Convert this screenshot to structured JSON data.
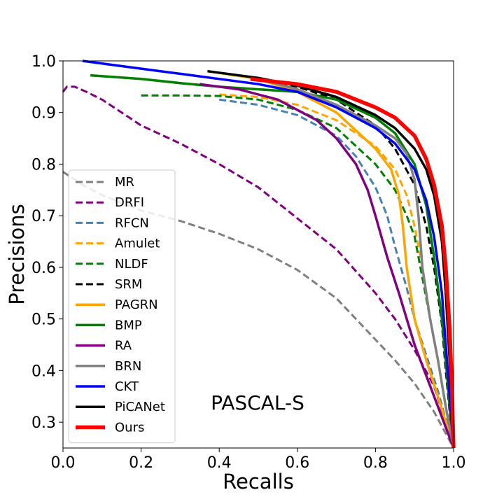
{
  "chart_data": {
    "type": "line",
    "title": "",
    "annotation": "PASCAL-S",
    "xlabel": "Recalls",
    "ylabel": "Precisions",
    "xlim": [
      0.0,
      1.0
    ],
    "ylim": [
      0.25,
      1.0
    ],
    "xticks": [
      "0.0",
      "0.2",
      "0.4",
      "0.6",
      "0.8",
      "1.0"
    ],
    "yticks": [
      "0.3",
      "0.4",
      "0.5",
      "0.6",
      "0.7",
      "0.8",
      "0.9",
      "1.0"
    ],
    "grid": false,
    "legend_position": "lower-left",
    "series": [
      {
        "name": "MR",
        "color": "#808080",
        "dash": true,
        "width": 3,
        "points": [
          [
            0.0,
            0.785
          ],
          [
            0.05,
            0.76
          ],
          [
            0.1,
            0.74
          ],
          [
            0.2,
            0.71
          ],
          [
            0.3,
            0.69
          ],
          [
            0.4,
            0.665
          ],
          [
            0.5,
            0.635
          ],
          [
            0.6,
            0.595
          ],
          [
            0.7,
            0.54
          ],
          [
            0.8,
            0.46
          ],
          [
            0.85,
            0.42
          ],
          [
            0.9,
            0.375
          ],
          [
            0.95,
            0.32
          ],
          [
            1.0,
            0.25
          ]
        ]
      },
      {
        "name": "DRFI",
        "color": "#800080",
        "dash": true,
        "width": 3,
        "points": [
          [
            0.0,
            0.94
          ],
          [
            0.01,
            0.95
          ],
          [
            0.03,
            0.95
          ],
          [
            0.06,
            0.94
          ],
          [
            0.1,
            0.925
          ],
          [
            0.15,
            0.9
          ],
          [
            0.2,
            0.875
          ],
          [
            0.3,
            0.84
          ],
          [
            0.4,
            0.8
          ],
          [
            0.5,
            0.755
          ],
          [
            0.6,
            0.695
          ],
          [
            0.7,
            0.635
          ],
          [
            0.8,
            0.55
          ],
          [
            0.85,
            0.5
          ],
          [
            0.9,
            0.44
          ],
          [
            0.95,
            0.37
          ],
          [
            1.0,
            0.25
          ]
        ]
      },
      {
        "name": "RFCN",
        "color": "#4682B4",
        "dash": true,
        "width": 3,
        "points": [
          [
            0.4,
            0.925
          ],
          [
            0.5,
            0.915
          ],
          [
            0.6,
            0.895
          ],
          [
            0.7,
            0.855
          ],
          [
            0.75,
            0.815
          ],
          [
            0.8,
            0.755
          ],
          [
            0.83,
            0.7
          ],
          [
            0.85,
            0.64
          ],
          [
            0.88,
            0.56
          ],
          [
            0.9,
            0.5
          ],
          [
            0.93,
            0.43
          ],
          [
            0.96,
            0.36
          ],
          [
            1.0,
            0.25
          ]
        ]
      },
      {
        "name": "Amulet",
        "color": "#FFA500",
        "dash": true,
        "width": 3,
        "points": [
          [
            0.4,
            0.935
          ],
          [
            0.5,
            0.93
          ],
          [
            0.6,
            0.915
          ],
          [
            0.7,
            0.885
          ],
          [
            0.8,
            0.835
          ],
          [
            0.85,
            0.79
          ],
          [
            0.88,
            0.74
          ],
          [
            0.9,
            0.68
          ],
          [
            0.92,
            0.6
          ],
          [
            0.94,
            0.5
          ],
          [
            0.96,
            0.42
          ],
          [
            0.98,
            0.33
          ],
          [
            1.0,
            0.25
          ]
        ]
      },
      {
        "name": "NLDF",
        "color": "#008000",
        "dash": true,
        "width": 3,
        "points": [
          [
            0.2,
            0.933
          ],
          [
            0.3,
            0.933
          ],
          [
            0.4,
            0.932
          ],
          [
            0.5,
            0.925
          ],
          [
            0.6,
            0.905
          ],
          [
            0.7,
            0.87
          ],
          [
            0.8,
            0.8
          ],
          [
            0.85,
            0.75
          ],
          [
            0.88,
            0.7
          ],
          [
            0.9,
            0.66
          ],
          [
            0.92,
            0.58
          ],
          [
            0.94,
            0.5
          ],
          [
            0.96,
            0.42
          ],
          [
            0.98,
            0.33
          ],
          [
            1.0,
            0.25
          ]
        ]
      },
      {
        "name": "SRM",
        "color": "#000000",
        "dash": true,
        "width": 3,
        "points": [
          [
            0.37,
            0.98
          ],
          [
            0.5,
            0.965
          ],
          [
            0.6,
            0.95
          ],
          [
            0.7,
            0.925
          ],
          [
            0.8,
            0.875
          ],
          [
            0.85,
            0.83
          ],
          [
            0.9,
            0.76
          ],
          [
            0.93,
            0.68
          ],
          [
            0.95,
            0.6
          ],
          [
            0.97,
            0.49
          ],
          [
            0.98,
            0.4
          ],
          [
            0.99,
            0.32
          ],
          [
            1.0,
            0.25
          ]
        ]
      },
      {
        "name": "PAGRN",
        "color": "#FFA500",
        "dash": false,
        "width": 3.5,
        "points": [
          [
            0.37,
            0.98
          ],
          [
            0.5,
            0.965
          ],
          [
            0.6,
            0.94
          ],
          [
            0.7,
            0.9
          ],
          [
            0.8,
            0.83
          ],
          [
            0.84,
            0.79
          ],
          [
            0.86,
            0.74
          ],
          [
            0.87,
            0.68
          ],
          [
            0.88,
            0.6
          ],
          [
            0.9,
            0.5
          ],
          [
            0.93,
            0.42
          ],
          [
            0.96,
            0.35
          ],
          [
            1.0,
            0.25
          ]
        ]
      },
      {
        "name": "BMP",
        "color": "#008000",
        "dash": false,
        "width": 3.5,
        "points": [
          [
            0.07,
            0.972
          ],
          [
            0.2,
            0.965
          ],
          [
            0.3,
            0.957
          ],
          [
            0.4,
            0.95
          ],
          [
            0.5,
            0.945
          ],
          [
            0.6,
            0.94
          ],
          [
            0.7,
            0.925
          ],
          [
            0.8,
            0.89
          ],
          [
            0.85,
            0.86
          ],
          [
            0.9,
            0.8
          ],
          [
            0.93,
            0.72
          ],
          [
            0.95,
            0.62
          ],
          [
            0.97,
            0.5
          ],
          [
            0.98,
            0.42
          ],
          [
            0.99,
            0.33
          ],
          [
            1.0,
            0.25
          ]
        ]
      },
      {
        "name": "RA",
        "color": "#800080",
        "dash": false,
        "width": 3.5,
        "points": [
          [
            0.35,
            0.955
          ],
          [
            0.45,
            0.945
          ],
          [
            0.55,
            0.925
          ],
          [
            0.65,
            0.885
          ],
          [
            0.7,
            0.85
          ],
          [
            0.75,
            0.8
          ],
          [
            0.78,
            0.75
          ],
          [
            0.8,
            0.7
          ],
          [
            0.83,
            0.62
          ],
          [
            0.86,
            0.55
          ],
          [
            0.9,
            0.45
          ],
          [
            0.95,
            0.35
          ],
          [
            1.0,
            0.25
          ]
        ]
      },
      {
        "name": "BRN",
        "color": "#808080",
        "dash": false,
        "width": 3.5,
        "points": [
          [
            0.5,
            0.965
          ],
          [
            0.6,
            0.945
          ],
          [
            0.7,
            0.915
          ],
          [
            0.8,
            0.875
          ],
          [
            0.85,
            0.85
          ],
          [
            0.88,
            0.82
          ],
          [
            0.9,
            0.77
          ],
          [
            0.91,
            0.7
          ],
          [
            0.92,
            0.6
          ],
          [
            0.94,
            0.5
          ],
          [
            0.96,
            0.42
          ],
          [
            0.98,
            0.33
          ],
          [
            1.0,
            0.25
          ]
        ]
      },
      {
        "name": "CKT",
        "color": "#0000FF",
        "dash": false,
        "width": 3.5,
        "points": [
          [
            0.05,
            1.0
          ],
          [
            0.2,
            0.985
          ],
          [
            0.3,
            0.975
          ],
          [
            0.4,
            0.965
          ],
          [
            0.5,
            0.955
          ],
          [
            0.6,
            0.94
          ],
          [
            0.7,
            0.91
          ],
          [
            0.8,
            0.87
          ],
          [
            0.85,
            0.84
          ],
          [
            0.9,
            0.79
          ],
          [
            0.93,
            0.73
          ],
          [
            0.95,
            0.66
          ],
          [
            0.97,
            0.55
          ],
          [
            0.98,
            0.45
          ],
          [
            0.99,
            0.35
          ],
          [
            1.0,
            0.25
          ]
        ]
      },
      {
        "name": "PiCANet",
        "color": "#000000",
        "dash": false,
        "width": 3.5,
        "points": [
          [
            0.37,
            0.98
          ],
          [
            0.5,
            0.967
          ],
          [
            0.6,
            0.952
          ],
          [
            0.7,
            0.93
          ],
          [
            0.8,
            0.895
          ],
          [
            0.85,
            0.87
          ],
          [
            0.9,
            0.83
          ],
          [
            0.93,
            0.79
          ],
          [
            0.95,
            0.74
          ],
          [
            0.97,
            0.65
          ],
          [
            0.98,
            0.55
          ],
          [
            0.99,
            0.42
          ],
          [
            1.0,
            0.25
          ]
        ]
      },
      {
        "name": "Ours",
        "color": "#FF0000",
        "dash": false,
        "width": 5.5,
        "points": [
          [
            0.48,
            0.965
          ],
          [
            0.6,
            0.955
          ],
          [
            0.7,
            0.94
          ],
          [
            0.8,
            0.91
          ],
          [
            0.85,
            0.89
          ],
          [
            0.9,
            0.855
          ],
          [
            0.93,
            0.81
          ],
          [
            0.95,
            0.76
          ],
          [
            0.97,
            0.68
          ],
          [
            0.98,
            0.6
          ],
          [
            0.99,
            0.48
          ],
          [
            0.995,
            0.38
          ],
          [
            1.0,
            0.25
          ]
        ]
      }
    ]
  }
}
